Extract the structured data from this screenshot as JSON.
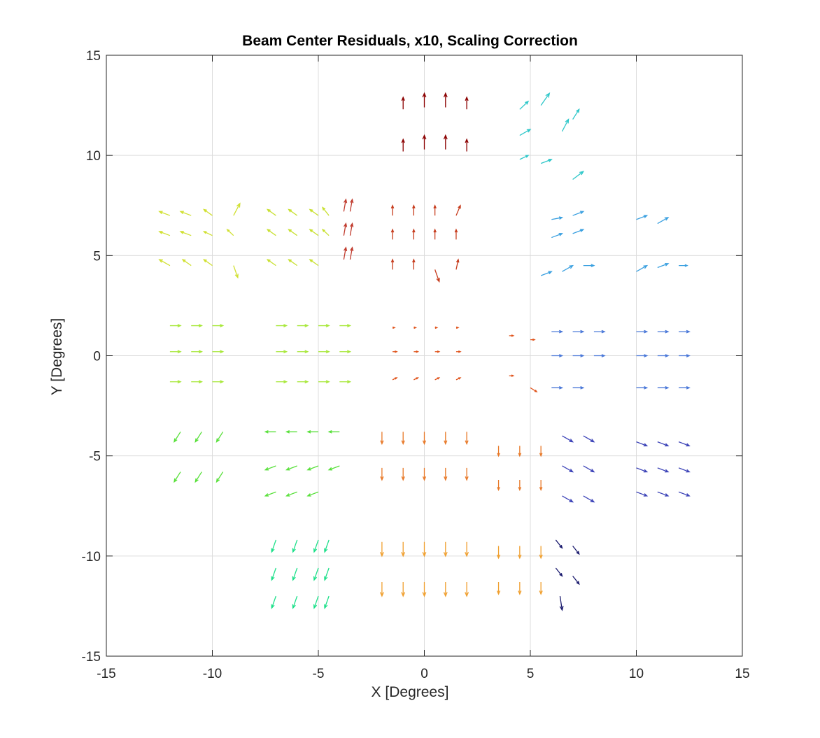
{
  "chart_data": {
    "type": "quiver",
    "title": "Beam Center Residuals, x10, Scaling Correction",
    "xlabel": "X [Degrees]",
    "ylabel": "Y [Degrees]",
    "xlim": [
      -15,
      15
    ],
    "ylim": [
      -15,
      15
    ],
    "xticks": [
      -15,
      -10,
      -5,
      0,
      5,
      10,
      15
    ],
    "yticks": [
      -15,
      -10,
      -5,
      0,
      5,
      10,
      15
    ],
    "grid": true,
    "arrow_scale": 10,
    "series": [
      {
        "color": "#8b0000",
        "x": [
          -1,
          0,
          1,
          2,
          -1,
          0,
          1,
          2
        ],
        "y": [
          12.3,
          12.4,
          12.4,
          12.3,
          10.2,
          10.3,
          10.3,
          10.2
        ],
        "u": [
          0.0,
          0.0,
          0.0,
          0.0,
          0.0,
          0.0,
          0.0,
          0.0
        ],
        "v": [
          0.06,
          0.07,
          0.07,
          0.06,
          0.06,
          0.07,
          0.07,
          0.06
        ]
      },
      {
        "color": "#2ec7c9",
        "x": [
          4.5,
          5.5,
          7,
          4.5,
          6.5,
          4.5,
          5.5,
          7
        ],
        "y": [
          12.3,
          12.5,
          11.8,
          11.0,
          11.2,
          9.8,
          9.6,
          8.8
        ],
        "u": [
          0.04,
          0.04,
          0.03,
          0.05,
          0.03,
          0.04,
          0.05,
          0.05
        ],
        "v": [
          0.04,
          0.06,
          0.05,
          0.03,
          0.06,
          0.02,
          0.02,
          0.04
        ]
      },
      {
        "color": "#d0e030",
        "x": [
          -12,
          -11,
          -10,
          -9,
          -12,
          -11,
          -10,
          -9,
          -12,
          -11,
          -10,
          -9
        ],
        "y": [
          7,
          7,
          7,
          7,
          6,
          6,
          6,
          6,
          4.5,
          4.5,
          4.5,
          4.5
        ],
        "u": [
          -0.05,
          -0.05,
          -0.04,
          0.03,
          -0.05,
          -0.05,
          -0.04,
          -0.03,
          -0.05,
          -0.04,
          -0.04,
          0.02
        ],
        "v": [
          0.02,
          0.02,
          0.03,
          0.06,
          0.02,
          0.02,
          0.02,
          0.03,
          0.03,
          0.03,
          0.03,
          -0.06
        ]
      },
      {
        "color": "#c8e030",
        "x": [
          -7,
          -6,
          -5,
          -4.5,
          -7,
          -6,
          -5,
          -4.5,
          -7,
          -6,
          -5
        ],
        "y": [
          7,
          7,
          7,
          7,
          6,
          6,
          6,
          6,
          4.5,
          4.5,
          4.5
        ],
        "u": [
          -0.04,
          -0.04,
          -0.04,
          -0.03,
          -0.04,
          -0.04,
          -0.04,
          -0.03,
          -0.04,
          -0.04,
          -0.04
        ],
        "v": [
          0.03,
          0.03,
          0.03,
          0.04,
          0.03,
          0.03,
          0.03,
          0.03,
          0.03,
          0.03,
          0.03
        ]
      },
      {
        "color": "#c0392b",
        "x": [
          -3.8,
          -3.5,
          -3.8,
          -3.5,
          -3.8,
          -3.5
        ],
        "y": [
          7.2,
          7.2,
          6.0,
          6.0,
          4.8,
          4.8
        ],
        "u": [
          0.01,
          0.01,
          0.01,
          0.01,
          0.01,
          0.01
        ],
        "v": [
          0.06,
          0.06,
          0.06,
          0.06,
          0.06,
          0.06
        ]
      },
      {
        "color": "#c63b1c",
        "x": [
          -1.5,
          -0.5,
          0.5,
          1.5,
          -1.5,
          -0.5,
          0.5,
          1.5,
          -1.5,
          -0.5,
          0.5,
          1.5
        ],
        "y": [
          7,
          7,
          7,
          7,
          5.8,
          5.8,
          5.8,
          5.8,
          4.3,
          4.3,
          4.3,
          4.3
        ],
        "u": [
          0.0,
          0.0,
          0.0,
          0.02,
          0.0,
          0.0,
          0.0,
          0.0,
          0.0,
          0.0,
          0.02,
          0.01
        ],
        "v": [
          0.05,
          0.05,
          0.05,
          0.05,
          0.05,
          0.05,
          0.05,
          0.05,
          0.05,
          0.05,
          -0.06,
          0.05
        ]
      },
      {
        "color": "#3aa0e0",
        "x": [
          6,
          7,
          6,
          7,
          5.5,
          6.5,
          7.5,
          10,
          11,
          10,
          11,
          12
        ],
        "y": [
          6.8,
          7.0,
          5.9,
          6.1,
          4.0,
          4.2,
          4.5,
          6.8,
          6.6,
          4.2,
          4.4,
          4.5
        ],
        "u": [
          0.05,
          0.05,
          0.05,
          0.05,
          0.05,
          0.05,
          0.05,
          0.05,
          0.05,
          0.05,
          0.05,
          0.04
        ],
        "v": [
          0.01,
          0.02,
          0.02,
          0.02,
          0.02,
          0.03,
          0.0,
          0.02,
          0.03,
          0.03,
          0.02,
          0.0
        ]
      },
      {
        "color": "#a8e83a",
        "x": [
          -12,
          -11,
          -10,
          -12,
          -11,
          -10,
          -12,
          -11,
          -10,
          -7,
          -6,
          -5,
          -4,
          -7,
          -6,
          -5,
          -4,
          -7,
          -6,
          -5,
          -4
        ],
        "y": [
          1.5,
          1.5,
          1.5,
          0.2,
          0.2,
          0.2,
          -1.3,
          -1.3,
          -1.3,
          1.5,
          1.5,
          1.5,
          1.5,
          0.2,
          0.2,
          0.2,
          0.2,
          -1.3,
          -1.3,
          -1.3,
          -1.3
        ],
        "u": [
          0.05,
          0.05,
          0.05,
          0.05,
          0.05,
          0.05,
          0.05,
          0.05,
          0.05,
          0.05,
          0.05,
          0.05,
          0.05,
          0.05,
          0.05,
          0.05,
          0.05,
          0.05,
          0.05,
          0.05,
          0.05
        ],
        "v": [
          0.0,
          0.0,
          0.0,
          0.0,
          0.0,
          0.0,
          0.0,
          0.0,
          0.0,
          0.0,
          0.0,
          0.0,
          0.0,
          0.0,
          0.0,
          0.0,
          0.0,
          0.0,
          0.0,
          0.0,
          0.0
        ]
      },
      {
        "color": "#e0541c",
        "x": [
          -1.5,
          -0.5,
          0.5,
          1.5,
          -1.5,
          -0.5,
          0.5,
          1.5,
          -1.5,
          -0.5,
          0.5,
          1.5,
          4,
          5,
          4,
          5
        ],
        "y": [
          1.4,
          1.4,
          1.4,
          1.4,
          0.2,
          0.2,
          0.2,
          0.2,
          -1.2,
          -1.2,
          -1.2,
          -1.2,
          1.0,
          0.8,
          -1.0,
          -1.6
        ],
        "u": [
          0.01,
          0.01,
          0.01,
          0.01,
          0.02,
          0.02,
          0.02,
          0.02,
          0.02,
          0.02,
          0.02,
          0.02,
          0.02,
          0.02,
          0.02,
          0.03
        ],
        "v": [
          0.0,
          0.0,
          0.0,
          0.0,
          0.0,
          0.0,
          0.0,
          0.0,
          0.01,
          0.01,
          0.01,
          0.01,
          0.0,
          0.0,
          0.0,
          -0.02
        ]
      },
      {
        "color": "#4a78d8",
        "x": [
          6,
          7,
          8,
          6,
          7,
          8,
          6,
          7,
          10,
          11,
          12,
          10,
          11,
          12,
          10,
          11,
          12
        ],
        "y": [
          1.2,
          1.2,
          1.2,
          0,
          0,
          0,
          -1.6,
          -1.6,
          1.2,
          1.2,
          1.2,
          0,
          0,
          0,
          -1.6,
          -1.6,
          -1.6
        ],
        "u": [
          0.05,
          0.05,
          0.05,
          0.05,
          0.05,
          0.05,
          0.05,
          0.05,
          0.05,
          0.05,
          0.05,
          0.05,
          0.05,
          0.05,
          0.05,
          0.05,
          0.05
        ],
        "v": [
          0.0,
          0.0,
          0.0,
          0.0,
          0.0,
          0.0,
          0.0,
          0.0,
          0.0,
          0.0,
          0.0,
          0.0,
          0.0,
          0.0,
          0.0,
          0.0,
          0.0
        ]
      },
      {
        "color": "#58e03a",
        "x": [
          -11.5,
          -10.5,
          -9.5,
          -11.5,
          -10.5,
          -9.5,
          -7,
          -6,
          -5,
          -4,
          -7,
          -6,
          -5,
          -4,
          -7,
          -6,
          -5
        ],
        "y": [
          -3.8,
          -3.8,
          -3.8,
          -5.8,
          -5.8,
          -5.8,
          -3.8,
          -3.8,
          -3.8,
          -3.8,
          -5.5,
          -5.5,
          -5.5,
          -5.5,
          -6.8,
          -6.8,
          -6.8
        ],
        "u": [
          -0.03,
          -0.03,
          -0.03,
          -0.03,
          -0.03,
          -0.03,
          -0.05,
          -0.05,
          -0.05,
          -0.05,
          -0.05,
          -0.05,
          -0.05,
          -0.05,
          -0.05,
          -0.05,
          -0.05
        ],
        "v": [
          -0.05,
          -0.05,
          -0.05,
          -0.05,
          -0.05,
          -0.05,
          0.0,
          0.0,
          0.0,
          0.0,
          -0.02,
          -0.02,
          -0.02,
          -0.02,
          -0.02,
          -0.02,
          -0.02
        ]
      },
      {
        "color": "#e87a2a",
        "x": [
          -2,
          -1,
          0,
          1,
          2,
          -2,
          -1,
          0,
          1,
          2,
          3.5,
          4.5,
          5.5,
          3.5,
          4.5,
          5.5
        ],
        "y": [
          -3.8,
          -3.8,
          -3.8,
          -3.8,
          -3.8,
          -5.6,
          -5.6,
          -5.6,
          -5.6,
          -5.6,
          -4.5,
          -4.5,
          -4.5,
          -6.2,
          -6.2,
          -6.2
        ],
        "u": [
          0.0,
          0.0,
          0.0,
          0.0,
          0.0,
          0.0,
          0.0,
          0.0,
          0.0,
          0.0,
          0.0,
          0.0,
          0.0,
          0.0,
          0.0,
          0.0
        ],
        "v": [
          -0.06,
          -0.06,
          -0.06,
          -0.06,
          -0.06,
          -0.06,
          -0.06,
          -0.06,
          -0.06,
          -0.06,
          -0.05,
          -0.05,
          -0.05,
          -0.05,
          -0.05,
          -0.05
        ]
      },
      {
        "color": "#3d44b8",
        "x": [
          6.5,
          7.5,
          6.5,
          7.5,
          6.5,
          7.5,
          10,
          11,
          12,
          10,
          11,
          12,
          10,
          11,
          12
        ],
        "y": [
          -4,
          -4,
          -5.5,
          -5.5,
          -7,
          -7,
          -4.3,
          -4.3,
          -4.3,
          -5.6,
          -5.6,
          -5.6,
          -6.8,
          -6.8,
          -6.8
        ],
        "u": [
          0.05,
          0.05,
          0.05,
          0.05,
          0.05,
          0.05,
          0.05,
          0.05,
          0.05,
          0.05,
          0.05,
          0.05,
          0.05,
          0.05,
          0.05
        ],
        "v": [
          -0.03,
          -0.03,
          -0.03,
          -0.03,
          -0.03,
          -0.03,
          -0.02,
          -0.02,
          -0.02,
          -0.02,
          -0.02,
          -0.02,
          -0.02,
          -0.02,
          -0.02
        ]
      },
      {
        "color": "#1ee08a",
        "x": [
          -7,
          -6,
          -5,
          -4.5,
          -7,
          -6,
          -5,
          -4.5,
          -7,
          -6,
          -5,
          -4.5
        ],
        "y": [
          -9.2,
          -9.2,
          -9.2,
          -9.2,
          -10.6,
          -10.6,
          -10.6,
          -10.6,
          -12,
          -12,
          -12,
          -12
        ],
        "u": [
          -0.02,
          -0.02,
          -0.02,
          -0.02,
          -0.02,
          -0.02,
          -0.02,
          -0.02,
          -0.02,
          -0.02,
          -0.02,
          -0.02
        ],
        "v": [
          -0.06,
          -0.06,
          -0.06,
          -0.06,
          -0.06,
          -0.06,
          -0.06,
          -0.06,
          -0.06,
          -0.06,
          -0.06,
          -0.06
        ]
      },
      {
        "color": "#f0a030",
        "x": [
          -2,
          -1,
          0,
          1,
          2,
          -2,
          -1,
          0,
          1,
          2,
          3.5,
          4.5,
          5.5,
          3.5,
          4.5,
          5.5
        ],
        "y": [
          -9.3,
          -9.3,
          -9.3,
          -9.3,
          -9.3,
          -11.3,
          -11.3,
          -11.3,
          -11.3,
          -11.3,
          -9.5,
          -9.5,
          -9.5,
          -11.3,
          -11.3,
          -11.3
        ],
        "u": [
          0.0,
          0.0,
          0.0,
          0.0,
          0.0,
          0.0,
          0.0,
          0.0,
          0.0,
          0.0,
          0.0,
          0.0,
          0.0,
          0.0,
          0.0,
          0.0
        ],
        "v": [
          -0.07,
          -0.07,
          -0.07,
          -0.07,
          -0.07,
          -0.07,
          -0.07,
          -0.07,
          -0.07,
          -0.07,
          -0.06,
          -0.06,
          -0.06,
          -0.06,
          -0.06,
          -0.06
        ]
      },
      {
        "color": "#1a1a6e",
        "x": [
          6.2,
          7,
          6.2,
          7,
          6.4
        ],
        "y": [
          -9.2,
          -9.5,
          -10.6,
          -11,
          -12
        ],
        "u": [
          0.03,
          0.03,
          0.03,
          0.03,
          0.01
        ],
        "v": [
          -0.04,
          -0.04,
          -0.04,
          -0.04,
          -0.07
        ]
      }
    ]
  }
}
